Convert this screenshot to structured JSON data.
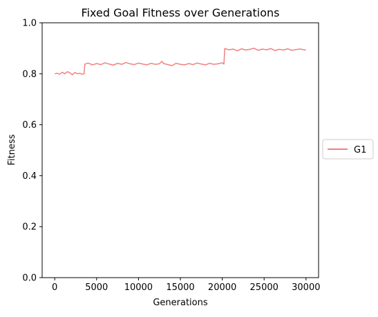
{
  "chart_data": {
    "type": "line",
    "title": "Fixed Goal Fitness over Generations",
    "xlabel": "Generations",
    "ylabel": "Fitness",
    "xlim": [
      -1500,
      31500
    ],
    "ylim": [
      0.0,
      1.0
    ],
    "xticks": [
      0,
      5000,
      10000,
      15000,
      20000,
      25000,
      30000
    ],
    "xtick_labels": [
      "0",
      "5000",
      "10000",
      "15000",
      "20000",
      "25000",
      "30000"
    ],
    "yticks": [
      0.0,
      0.2,
      0.4,
      0.6,
      0.8,
      1.0
    ],
    "ytick_labels": [
      "0.0",
      "0.2",
      "0.4",
      "0.6",
      "0.8",
      "1.0"
    ],
    "grid": false,
    "legend_position": "outside-right",
    "series": [
      {
        "name": "G1",
        "color": "#f08080",
        "x": [
          0,
          300,
          600,
          900,
          1200,
          1500,
          1800,
          2100,
          2400,
          2700,
          3000,
          3300,
          3500,
          3600,
          4000,
          4500,
          5000,
          5500,
          6000,
          6500,
          7000,
          7500,
          8000,
          8500,
          9000,
          9500,
          10000,
          10500,
          11000,
          11500,
          12000,
          12500,
          12800,
          13000,
          13500,
          14000,
          14500,
          15000,
          15500,
          16000,
          16500,
          17000,
          17500,
          18000,
          18500,
          19000,
          19500,
          20000,
          20200,
          20300,
          20800,
          21300,
          21800,
          22300,
          22800,
          23300,
          23800,
          24300,
          24800,
          25300,
          25800,
          26300,
          26800,
          27300,
          27800,
          28300,
          28800,
          29300,
          29800,
          30000
        ],
        "y": [
          0.8,
          0.802,
          0.798,
          0.806,
          0.8,
          0.808,
          0.804,
          0.796,
          0.805,
          0.8,
          0.802,
          0.798,
          0.8,
          0.838,
          0.842,
          0.835,
          0.84,
          0.836,
          0.843,
          0.838,
          0.834,
          0.841,
          0.837,
          0.844,
          0.839,
          0.836,
          0.842,
          0.838,
          0.835,
          0.841,
          0.837,
          0.839,
          0.849,
          0.84,
          0.836,
          0.832,
          0.841,
          0.837,
          0.835,
          0.84,
          0.836,
          0.842,
          0.838,
          0.835,
          0.841,
          0.837,
          0.839,
          0.843,
          0.838,
          0.899,
          0.894,
          0.897,
          0.89,
          0.898,
          0.893,
          0.896,
          0.9,
          0.892,
          0.897,
          0.894,
          0.899,
          0.891,
          0.896,
          0.893,
          0.898,
          0.892,
          0.895,
          0.897,
          0.894,
          0.893
        ]
      }
    ]
  }
}
